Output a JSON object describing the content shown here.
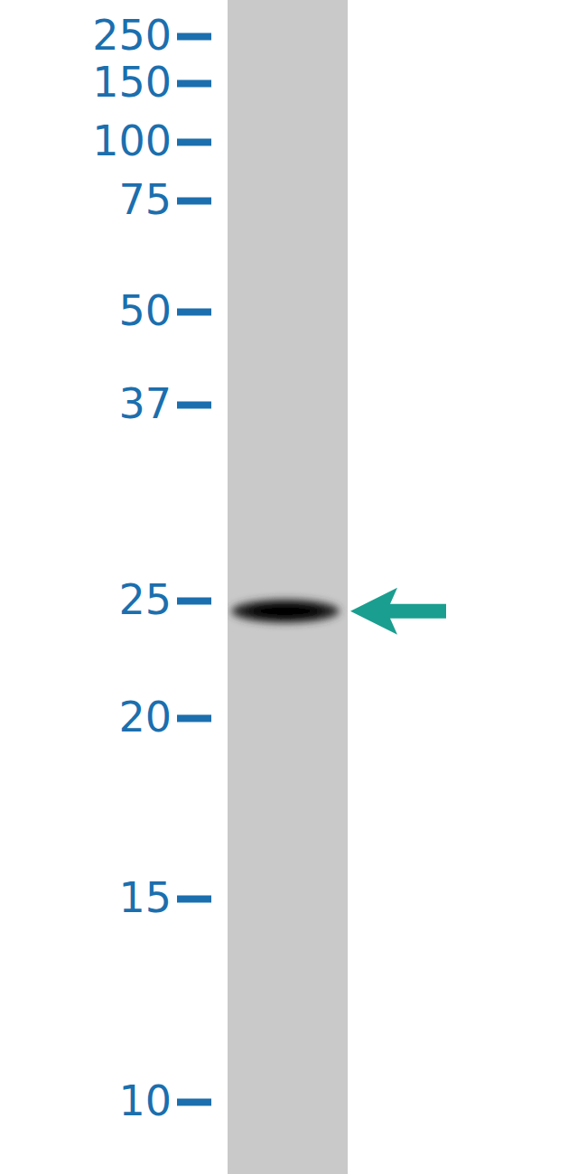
{
  "chart_data": {
    "type": "western_blot",
    "log": "y",
    "ylim": [
      10,
      250
    ],
    "yticks": [
      250,
      150,
      100,
      75,
      50,
      37,
      25,
      20,
      15,
      10
    ],
    "values": [
      24.5
    ]
  }
}
